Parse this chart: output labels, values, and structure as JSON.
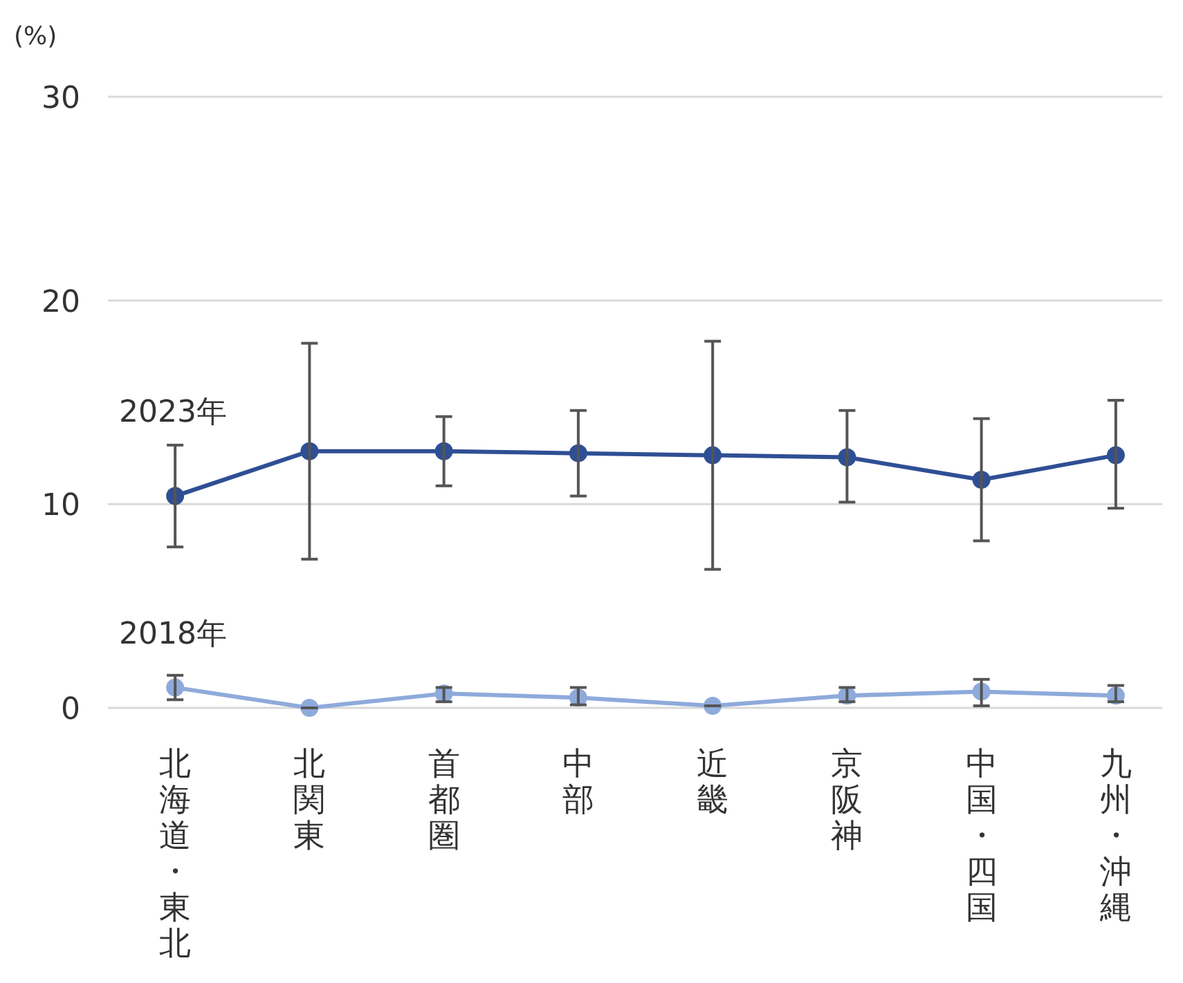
{
  "chart_data": {
    "type": "line",
    "ylabel": "(%)",
    "categories": [
      "北海道・東北",
      "北関東",
      "首都圏",
      "中部",
      "近畿",
      "京阪神",
      "中国・四国",
      "九州・沖縄"
    ],
    "series": [
      {
        "name": "2023年",
        "color": "#2f4f94",
        "values": [
          10.4,
          12.6,
          12.6,
          12.5,
          12.4,
          12.3,
          11.2,
          12.4
        ],
        "errors": [
          [
            7.9,
            12.9
          ],
          [
            7.3,
            17.9
          ],
          [
            10.9,
            14.3
          ],
          [
            10.4,
            14.6
          ],
          [
            6.8,
            18.0
          ],
          [
            10.1,
            14.6
          ],
          [
            8.2,
            14.2
          ],
          [
            9.8,
            15.1
          ]
        ]
      },
      {
        "name": "2018年",
        "color": "#8eaadb",
        "values": [
          1.0,
          0.0,
          0.7,
          0.5,
          0.1,
          0.6,
          0.8,
          0.6
        ],
        "errors": [
          [
            0.4,
            1.6
          ],
          [
            0.0,
            0.0
          ],
          [
            0.3,
            1.0
          ],
          [
            0.15,
            1.0
          ],
          [
            0.1,
            0.1
          ],
          [
            0.3,
            1.0
          ],
          [
            0.1,
            1.4
          ],
          [
            0.3,
            1.1
          ]
        ]
      }
    ],
    "ylim": [
      0,
      30
    ],
    "yticks": [
      0,
      10,
      20,
      30
    ],
    "grid": "y",
    "marker": "circle",
    "line_style": "solid"
  }
}
